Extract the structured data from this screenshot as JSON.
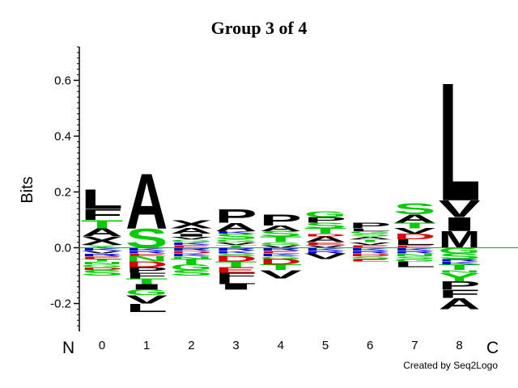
{
  "chart_data": {
    "type": "sequence-logo",
    "title": "Group 3 of 4",
    "ylabel": "Bits",
    "ylim": [
      -0.3,
      0.72
    ],
    "yticks": [
      -0.2,
      0.0,
      0.2,
      0.4,
      0.6
    ],
    "ytick_labels": [
      "-0.2",
      "0.0",
      "0.2",
      "0.4",
      "0.6"
    ],
    "n_label": "N",
    "c_label": "C",
    "credit": "Created by Seq2Logo",
    "colors": {
      "A": "#000000",
      "L": "#000000",
      "F": "#000000",
      "I": "#000000",
      "M": "#000000",
      "P": "#000000",
      "V": "#000000",
      "W": "#000000",
      "X": "#000000",
      "S": "#00cc00",
      "G": "#00cc00",
      "T": "#00cc00",
      "Y": "#00cc00",
      "C": "#00cc00",
      "N": "#00cc00",
      "Q": "#00cc00",
      "K": "#0000dd",
      "R": "#0000dd",
      "H": "#0000dd",
      "D": "#dd0000",
      "E": "#dd0000"
    },
    "positions": [
      {
        "label": "0",
        "pos": [
          [
            "Y",
            0.01
          ],
          [
            "X",
            0.03
          ],
          [
            "A",
            0.03
          ],
          [
            "T",
            0.03
          ],
          [
            "F",
            0.04
          ],
          [
            "L",
            0.07
          ]
        ],
        "neg": [
          [
            "K",
            0.01
          ],
          [
            "V",
            0.01
          ],
          [
            "R",
            0.01
          ],
          [
            "E",
            0.01
          ],
          [
            "T",
            0.01
          ],
          [
            "N",
            0.01
          ],
          [
            "G",
            0.01
          ],
          [
            "D",
            0.01
          ],
          [
            "S",
            0.02
          ]
        ]
      },
      {
        "label": "1",
        "pos": [
          [
            "S",
            0.07
          ],
          [
            "A",
            0.2
          ]
        ],
        "neg": [
          [
            "K",
            0.01
          ],
          [
            "R",
            0.01
          ],
          [
            "E",
            0.01
          ],
          [
            "N",
            0.02
          ],
          [
            "D",
            0.02
          ],
          [
            "P",
            0.02
          ],
          [
            "F",
            0.02
          ],
          [
            "T",
            0.02
          ],
          [
            "I",
            0.02
          ],
          [
            "G",
            0.02
          ],
          [
            "V",
            0.03
          ],
          [
            "L",
            0.03
          ]
        ]
      },
      {
        "label": "2",
        "pos": [
          [
            "E",
            0.01
          ],
          [
            "K",
            0.01
          ],
          [
            "G",
            0.01
          ],
          [
            "V",
            0.01
          ],
          [
            "I",
            0.01
          ],
          [
            "A",
            0.02
          ],
          [
            "X",
            0.03
          ]
        ],
        "neg": [
          [
            "R",
            0.01
          ],
          [
            "D",
            0.01
          ],
          [
            "K",
            0.01
          ],
          [
            "N",
            0.01
          ],
          [
            "T",
            0.02
          ],
          [
            "G",
            0.02
          ],
          [
            "S",
            0.02
          ]
        ]
      },
      {
        "label": "3",
        "pos": [
          [
            "T",
            0.01
          ],
          [
            "V",
            0.01
          ],
          [
            "G",
            0.01
          ],
          [
            "S",
            0.02
          ],
          [
            "K",
            0.01
          ],
          [
            "A",
            0.03
          ],
          [
            "P",
            0.05
          ]
        ],
        "neg": [
          [
            "R",
            0.01
          ],
          [
            "K",
            0.01
          ],
          [
            "S",
            0.01
          ],
          [
            "D",
            0.02
          ],
          [
            "T",
            0.02
          ],
          [
            "E",
            0.02
          ],
          [
            "F",
            0.02
          ],
          [
            "L",
            0.02
          ],
          [
            "I",
            0.02
          ]
        ]
      },
      {
        "label": "4",
        "pos": [
          [
            "V",
            0.01
          ],
          [
            "G",
            0.01
          ],
          [
            "T",
            0.02
          ],
          [
            "S",
            0.02
          ],
          [
            "A",
            0.02
          ],
          [
            "P",
            0.04
          ]
        ],
        "neg": [
          [
            "R",
            0.01
          ],
          [
            "E",
            0.01
          ],
          [
            "K",
            0.01
          ],
          [
            "G",
            0.01
          ],
          [
            "D",
            0.02
          ],
          [
            "T",
            0.02
          ],
          [
            "V",
            0.03
          ]
        ]
      },
      {
        "label": "5",
        "pos": [
          [
            "V",
            0.01
          ],
          [
            "E",
            0.01
          ],
          [
            "A",
            0.02
          ],
          [
            "D",
            0.01
          ],
          [
            "T",
            0.02
          ],
          [
            "S",
            0.02
          ],
          [
            "P",
            0.02
          ],
          [
            "G",
            0.02
          ]
        ],
        "neg": [
          [
            "K",
            0.01
          ],
          [
            "R",
            0.01
          ],
          [
            "V",
            0.02
          ]
        ]
      },
      {
        "label": "6",
        "pos": [
          [
            "E",
            0.01
          ],
          [
            "V",
            0.01
          ],
          [
            "T",
            0.01
          ],
          [
            "A",
            0.01
          ],
          [
            "S",
            0.01
          ],
          [
            "G",
            0.01
          ],
          [
            "L",
            0.01
          ],
          [
            "P",
            0.02
          ]
        ],
        "neg": [
          [
            "K",
            0.01
          ],
          [
            "R",
            0.01
          ],
          [
            "D",
            0.01
          ],
          [
            "S",
            0.01
          ],
          [
            "E",
            0.01
          ]
        ]
      },
      {
        "label": "7",
        "pos": [
          [
            "E",
            0.01
          ],
          [
            "L",
            0.02
          ],
          [
            "D",
            0.02
          ],
          [
            "V",
            0.02
          ],
          [
            "T",
            0.02
          ],
          [
            "A",
            0.03
          ],
          [
            "S",
            0.04
          ]
        ],
        "neg": [
          [
            "K",
            0.01
          ],
          [
            "R",
            0.01
          ],
          [
            "N",
            0.01
          ],
          [
            "S",
            0.01
          ],
          [
            "G",
            0.01
          ],
          [
            "L",
            0.02
          ]
        ]
      },
      {
        "label": "8",
        "pos": [
          [
            "M",
            0.06
          ],
          [
            "I",
            0.05
          ],
          [
            "V",
            0.06
          ],
          [
            "L",
            0.43
          ]
        ],
        "neg": [
          [
            "G",
            0.02
          ],
          [
            "S",
            0.02
          ],
          [
            "R",
            0.01
          ],
          [
            "K",
            0.01
          ],
          [
            "T",
            0.02
          ],
          [
            "N",
            0.01
          ],
          [
            "Y",
            0.03
          ],
          [
            "P",
            0.03
          ],
          [
            "F",
            0.03
          ],
          [
            "A",
            0.04
          ]
        ]
      }
    ]
  }
}
